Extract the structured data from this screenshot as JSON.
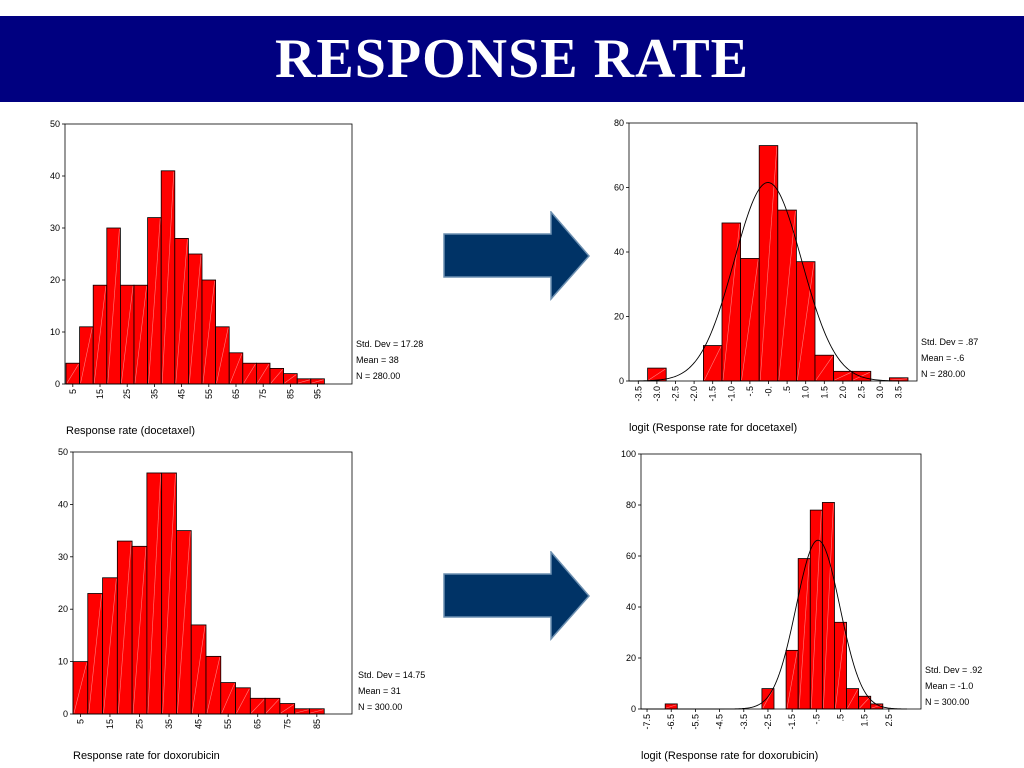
{
  "header": {
    "title": "RESPONSE RATE"
  },
  "colors": {
    "bar": "#ff0000",
    "arrow": "#003366",
    "title_bg": "#000080"
  },
  "chart_data": [
    {
      "type": "bar",
      "caption": "Response rate (docetaxel)",
      "categories": [
        "5",
        "10",
        "15",
        "20",
        "25",
        "30",
        "35",
        "40",
        "45",
        "50",
        "55",
        "60",
        "65",
        "70",
        "75",
        "80",
        "85",
        "90",
        "95",
        "100"
      ],
      "x_tick_labels": [
        "5",
        "15",
        "25",
        "35",
        "45",
        "55",
        "65",
        "75",
        "85",
        "95"
      ],
      "values": [
        4,
        11,
        19,
        30,
        19,
        19,
        32,
        41,
        28,
        25,
        20,
        11,
        6,
        4,
        4,
        3,
        2,
        1,
        1,
        0
      ],
      "ylim": [
        0,
        50
      ],
      "y_ticks": [
        0,
        10,
        20,
        30,
        40,
        50
      ],
      "normal_curve": false,
      "stats": [
        "Std. Dev = 17.28",
        "Mean = 38",
        "N = 280.00"
      ]
    },
    {
      "type": "bar",
      "caption": "logit (Response rate for docetaxel)",
      "categories": [
        "-3.5",
        "-3.0",
        "-2.5",
        "-2.0",
        "-1.5",
        "-1.0",
        "-.5",
        "-0.",
        "0.5",
        "1.0",
        "1.5",
        "2.0",
        "2.5",
        "3.0",
        "3.5"
      ],
      "x_tick_labels": [
        "-3.5",
        "-3.0",
        "-2.5",
        "-2.0",
        "-1.5",
        "-1.0",
        "-.5",
        "-0.",
        ".5",
        "1.0",
        "1.5",
        "2.0",
        "2.5",
        "3.0",
        "3.5"
      ],
      "values": [
        0,
        4,
        0,
        0,
        11,
        49,
        38,
        73,
        53,
        37,
        8,
        3,
        3,
        0,
        1
      ],
      "ylim": [
        0,
        80
      ],
      "y_ticks": [
        0,
        20,
        40,
        60,
        80
      ],
      "normal_curve": true,
      "stats": [
        "Std. Dev = .87",
        "Mean = -.6",
        "N = 280.00"
      ]
    },
    {
      "type": "bar",
      "caption": "Response rate for doxorubicin",
      "categories": [
        "5",
        "10",
        "15",
        "20",
        "25",
        "30",
        "35",
        "40",
        "45",
        "50",
        "55",
        "60",
        "65",
        "70",
        "75",
        "80",
        "85",
        "90"
      ],
      "x_tick_labels": [
        "5",
        "15",
        "25",
        "35",
        "45",
        "55",
        "65",
        "75",
        "85"
      ],
      "values": [
        10,
        23,
        26,
        33,
        32,
        46,
        46,
        35,
        17,
        11,
        6,
        5,
        3,
        3,
        2,
        1,
        1,
        0
      ],
      "ylim": [
        0,
        50
      ],
      "y_ticks": [
        0,
        10,
        20,
        30,
        40,
        50
      ],
      "normal_curve": false,
      "stats": [
        "Std. Dev = 14.75",
        "Mean = 31",
        "N = 300.00"
      ]
    },
    {
      "type": "bar",
      "caption": "logit (Response rate for doxorubicin)",
      "categories": [
        "-7.5",
        "-7.0",
        "-6.5",
        "-6.0",
        "-5.5",
        "-5.0",
        "-4.5",
        "-4.0",
        "-3.5",
        "-3.0",
        "-2.5",
        "-2.0",
        "-1.5",
        "-1.0",
        "-.5",
        "0",
        "0.5",
        "1.0",
        "1.5",
        "2.0",
        "2.5",
        "3.0"
      ],
      "x_tick_labels": [
        "-7.5",
        "-6.5",
        "-5.5",
        "-4.5",
        "-3.5",
        "-2.5",
        "-1.5",
        "-.5",
        ".5",
        "1.5",
        "2.5"
      ],
      "values": [
        0,
        0,
        2,
        0,
        0,
        0,
        0,
        0,
        0,
        0,
        8,
        0,
        23,
        59,
        78,
        81,
        34,
        8,
        5,
        2,
        0,
        0
      ],
      "ylim": [
        0,
        100
      ],
      "y_ticks": [
        0,
        20,
        40,
        60,
        80,
        100
      ],
      "normal_curve": true,
      "stats": [
        "Std. Dev = .92",
        "Mean = -1.0",
        "N = 300.00"
      ]
    }
  ]
}
